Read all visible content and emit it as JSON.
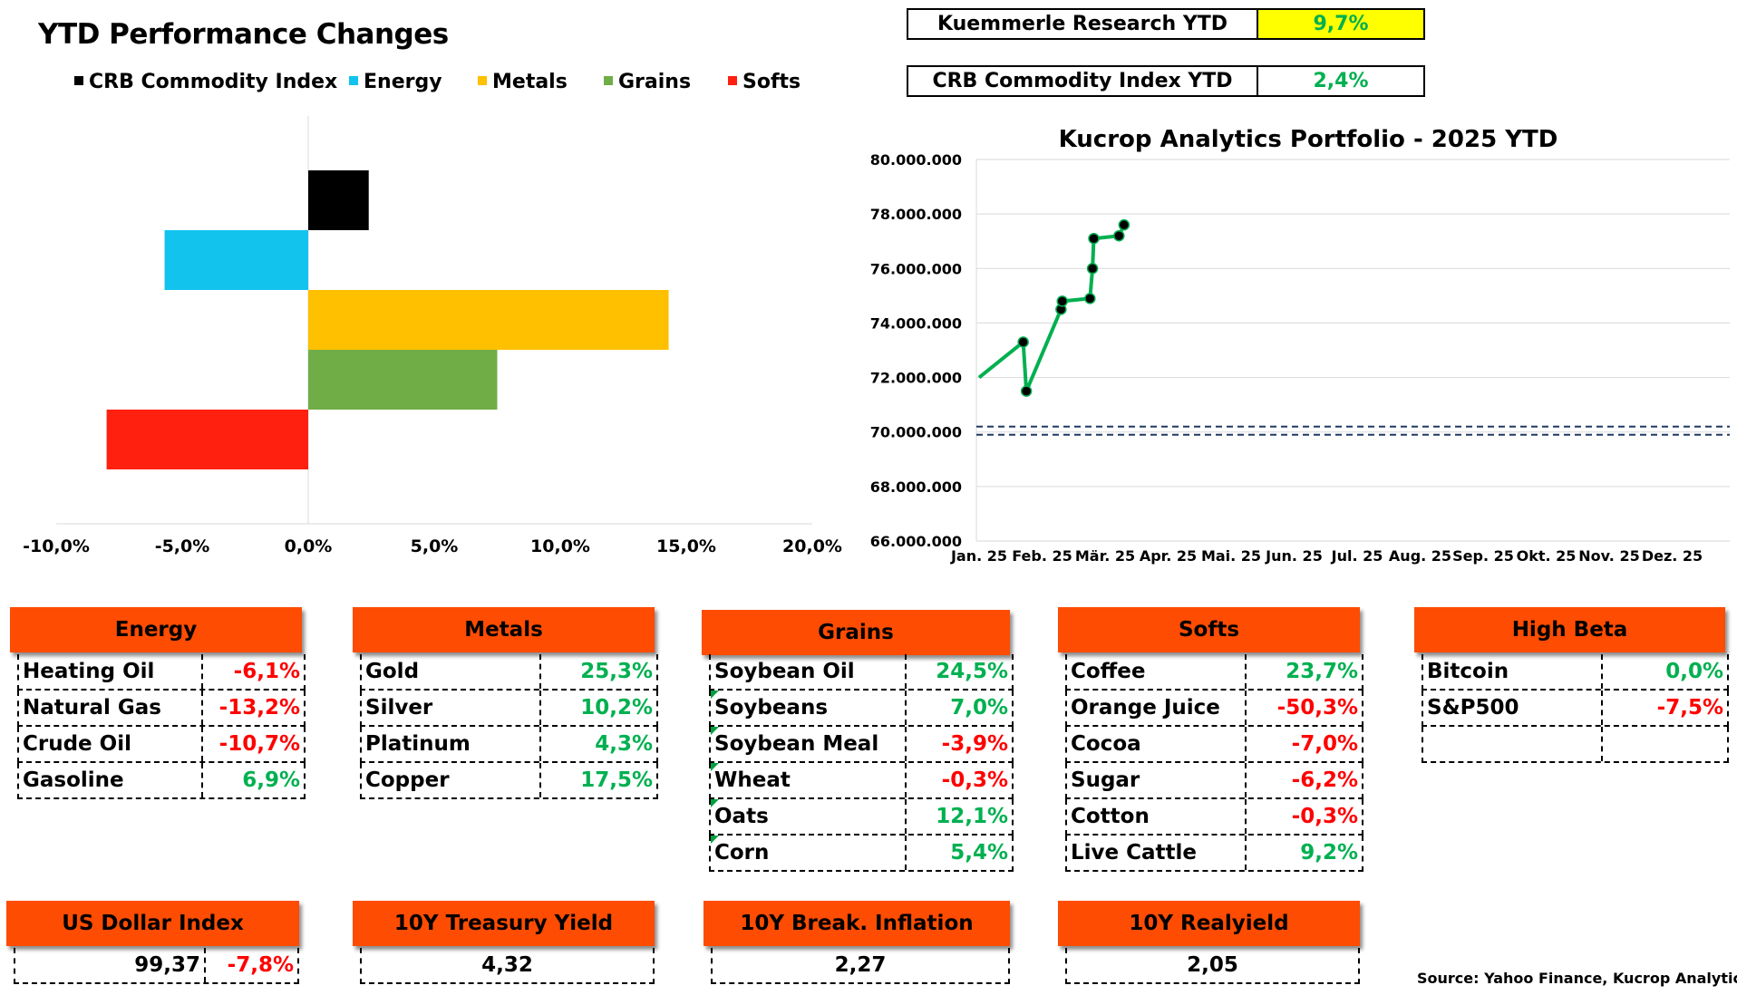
{
  "title": "YTD Performance Changes",
  "legend": [
    {
      "label": "CRB Commodity Index",
      "color": "#000000"
    },
    {
      "label": "Energy",
      "color": "#12c3ee"
    },
    {
      "label": "Metals",
      "color": "#ffc000"
    },
    {
      "label": "Grains",
      "color": "#70ad47"
    },
    {
      "label": "Softs",
      "color": "#ff2010"
    }
  ],
  "kpis": [
    {
      "label": "Kuemmerle Research YTD",
      "value": "9,7%",
      "bg": "#ffff00"
    },
    {
      "label": "CRB Commodity Index YTD",
      "value": "2,4%",
      "bg": "#ffffff"
    }
  ],
  "chart_data": [
    {
      "type": "bar",
      "orientation": "horizontal",
      "title": "",
      "categories": [
        "CRB Commodity Index",
        "Energy",
        "Metals",
        "Grains",
        "Softs"
      ],
      "values": [
        2.4,
        -5.7,
        14.3,
        7.5,
        -8.0
      ],
      "colors": [
        "#000000",
        "#12c3ee",
        "#ffc000",
        "#70ad47",
        "#ff2010"
      ],
      "xlim": [
        -10,
        20
      ],
      "xticks": [
        "-10,0%",
        "-5,0%",
        "0,0%",
        "5,0%",
        "10,0%",
        "15,0%",
        "20,0%"
      ],
      "legend": "top"
    },
    {
      "type": "line",
      "title": "Kucrop Analytics Portfolio - 2025 YTD",
      "ylim": [
        66000000,
        80000000
      ],
      "yticks": [
        "66.000.000",
        "68.000.000",
        "70.000.000",
        "72.000.000",
        "74.000.000",
        "76.000.000",
        "78.000.000",
        "80.000.000"
      ],
      "xticks": [
        "Jan. 25",
        "Feb. 25",
        "Mär. 25",
        "Apr. 25",
        "Mai. 25",
        "Jun. 25",
        "Jul. 25",
        "Aug. 25",
        "Sep. 25",
        "Okt. 25",
        "Nov. 25",
        "Dez. 25"
      ],
      "series": [
        {
          "color": "#00b050",
          "points": [
            [
              0,
              72000000
            ],
            [
              0.7,
              73300000
            ],
            [
              0.75,
              71500000
            ],
            [
              1.3,
              74500000
            ],
            [
              1.32,
              74800000
            ],
            [
              1.76,
              74900000
            ],
            [
              1.8,
              76000000
            ],
            [
              1.82,
              77100000
            ],
            [
              2.22,
              77200000
            ],
            [
              2.3,
              77600000
            ]
          ],
          "markers_from": 1
        }
      ],
      "reference_lines": [
        70200000,
        69900000
      ]
    }
  ],
  "panels": [
    {
      "title": "Energy",
      "rows": [
        {
          "name": "Heating Oil",
          "value": "-6,1%",
          "sign": "neg"
        },
        {
          "name": "Natural Gas",
          "value": "-13,2%",
          "sign": "neg"
        },
        {
          "name": "Crude Oil",
          "value": "-10,7%",
          "sign": "neg"
        },
        {
          "name": "Gasoline",
          "value": "6,9%",
          "sign": "pos"
        }
      ]
    },
    {
      "title": "Metals",
      "rows": [
        {
          "name": "Gold",
          "value": "25,3%",
          "sign": "pos"
        },
        {
          "name": "Silver",
          "value": "10,2%",
          "sign": "pos"
        },
        {
          "name": "Platinum",
          "value": "4,3%",
          "sign": "pos"
        },
        {
          "name": "Copper",
          "value": "17,5%",
          "sign": "pos"
        }
      ]
    },
    {
      "title": "Grains",
      "rows": [
        {
          "name": "Soybean Oil",
          "value": "24,5%",
          "sign": "pos"
        },
        {
          "name": "Soybeans",
          "value": "7,0%",
          "sign": "pos"
        },
        {
          "name": "Soybean Meal",
          "value": "-3,9%",
          "sign": "neg"
        },
        {
          "name": "Wheat",
          "value": "-0,3%",
          "sign": "neg"
        },
        {
          "name": "Oats",
          "value": "12,1%",
          "sign": "pos"
        },
        {
          "name": "Corn",
          "value": "5,4%",
          "sign": "pos"
        }
      ]
    },
    {
      "title": "Softs",
      "rows": [
        {
          "name": "Coffee",
          "value": "23,7%",
          "sign": "pos"
        },
        {
          "name": "Orange Juice",
          "value": "-50,3%",
          "sign": "neg"
        },
        {
          "name": "Cocoa",
          "value": "-7,0%",
          "sign": "neg"
        },
        {
          "name": "Sugar",
          "value": "-6,2%",
          "sign": "neg"
        },
        {
          "name": "Cotton",
          "value": "-0,3%",
          "sign": "neg"
        },
        {
          "name": "Live Cattle",
          "value": "9,2%",
          "sign": "pos"
        }
      ]
    },
    {
      "title": "High Beta",
      "rows": [
        {
          "name": "Bitcoin",
          "value": "0,0%",
          "sign": "pos"
        },
        {
          "name": "S&P500",
          "value": "-7,5%",
          "sign": "neg"
        },
        {
          "name": "",
          "value": "",
          "sign": ""
        }
      ]
    }
  ],
  "indicators": [
    {
      "title": "US Dollar Index",
      "value": "99,37",
      "change": "-7,8%"
    },
    {
      "title": "10Y Treasury Yield",
      "value": "4,32"
    },
    {
      "title": "10Y Break. Inflation",
      "value": "2,27"
    },
    {
      "title": "10Y Realyield",
      "value": "2,05"
    }
  ],
  "source": "Source: Yahoo Finance, Kucrop Analytics"
}
